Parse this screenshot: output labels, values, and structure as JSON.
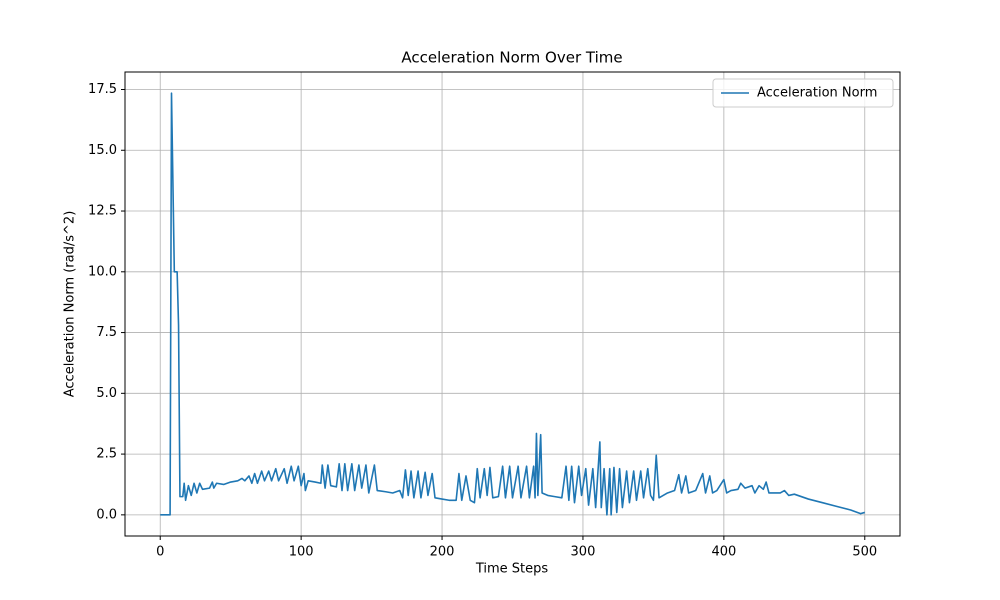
{
  "chart_data": {
    "type": "line",
    "title": "Acceleration Norm Over Time",
    "xlabel": "Time Steps",
    "ylabel": "Acceleration Norm (rad/s^2)",
    "x": [
      0,
      7,
      8,
      10,
      12,
      13,
      14,
      16,
      17,
      18,
      20,
      22,
      24,
      26,
      28,
      30,
      35,
      37,
      38,
      40,
      45,
      50,
      55,
      58,
      60,
      63,
      65,
      67,
      69,
      72,
      74,
      77,
      79,
      82,
      84,
      88,
      90,
      93,
      95,
      98,
      100,
      102,
      103,
      105,
      110,
      114,
      115,
      117,
      119,
      121,
      125,
      127,
      129,
      131,
      133,
      136,
      138,
      141,
      143,
      146,
      148,
      152,
      154,
      160,
      165,
      170,
      172,
      174,
      176,
      178,
      180,
      183,
      185,
      188,
      190,
      193,
      195,
      200,
      205,
      210,
      212,
      214,
      217,
      220,
      223,
      225,
      227,
      230,
      232,
      234,
      236,
      240,
      243,
      245,
      248,
      250,
      254,
      256,
      260,
      262,
      265,
      266,
      267,
      268,
      270,
      271,
      275,
      280,
      285,
      288,
      290,
      292,
      294,
      297,
      299,
      302,
      304,
      307,
      309,
      312,
      313,
      315,
      317,
      319,
      320,
      322,
      324,
      326,
      328,
      331,
      333,
      336,
      338,
      341,
      343,
      346,
      348,
      350,
      352,
      354,
      360,
      365,
      368,
      370,
      373,
      375,
      380,
      385,
      387,
      390,
      392,
      395,
      400,
      402,
      405,
      410,
      412,
      415,
      420,
      422,
      425,
      428,
      430,
      432,
      440,
      443,
      446,
      450,
      460,
      470,
      480,
      490,
      497,
      500
    ],
    "series": [
      {
        "name": "Acceleration Norm",
        "color": "#1f77b4",
        "values": [
          0,
          0,
          17.35,
          10,
          10,
          7.8,
          0.75,
          0.75,
          1.3,
          0.6,
          1.2,
          0.8,
          1.3,
          0.9,
          1.3,
          1.05,
          1.1,
          1.35,
          1.1,
          1.3,
          1.25,
          1.35,
          1.4,
          1.5,
          1.4,
          1.6,
          1.3,
          1.7,
          1.3,
          1.8,
          1.4,
          1.8,
          1.4,
          1.9,
          1.4,
          1.9,
          1.3,
          2.0,
          1.4,
          2.0,
          1.2,
          1.7,
          1.0,
          1.4,
          1.35,
          1.3,
          2.05,
          1.1,
          2.05,
          1.2,
          1.15,
          2.1,
          1.0,
          2.1,
          1.0,
          2.1,
          1.0,
          2.05,
          1.1,
          2.05,
          0.9,
          2.05,
          1.0,
          0.95,
          0.9,
          1.0,
          0.7,
          1.85,
          0.8,
          1.8,
          0.7,
          1.8,
          0.7,
          1.75,
          0.8,
          1.7,
          0.7,
          0.65,
          0.6,
          0.6,
          1.7,
          0.6,
          1.6,
          0.6,
          0.5,
          1.9,
          0.7,
          1.9,
          0.8,
          1.95,
          0.7,
          0.75,
          2.0,
          0.7,
          2.0,
          0.7,
          2.0,
          0.7,
          2.0,
          0.7,
          2.0,
          0.7,
          3.35,
          0.8,
          3.3,
          0.9,
          0.8,
          0.75,
          0.7,
          2.0,
          0.6,
          2.0,
          0.5,
          2.0,
          0.8,
          1.9,
          0.4,
          1.9,
          0.3,
          3.0,
          0.3,
          1.9,
          0.0,
          1.9,
          0.0,
          1.95,
          0.1,
          1.9,
          0.3,
          1.8,
          0.5,
          1.8,
          0.6,
          1.8,
          0.7,
          1.9,
          0.8,
          0.6,
          2.45,
          0.7,
          0.9,
          1.0,
          1.65,
          0.9,
          1.6,
          0.9,
          1.0,
          1.7,
          0.9,
          1.6,
          0.9,
          1.0,
          1.45,
          0.9,
          1.0,
          1.05,
          1.3,
          1.1,
          1.2,
          0.9,
          1.2,
          1.05,
          1.35,
          0.9,
          0.9,
          1.0,
          0.8,
          0.85,
          0.65,
          0.5,
          0.35,
          0.2,
          0.05,
          0.1
        ]
      }
    ],
    "xlim": [
      -25,
      525
    ],
    "xticks": [
      0,
      100,
      200,
      300,
      400,
      500
    ],
    "ylim": [
      -0.87,
      18.22
    ],
    "yticks": [
      {
        "value": 0,
        "label": "0.0"
      },
      2.5,
      {
        "value": 5,
        "label": "5.0"
      },
      7.5,
      {
        "value": 10,
        "label": "10.0"
      },
      12.5,
      {
        "value": 15,
        "label": "15.0"
      },
      17.5
    ],
    "grid": true,
    "legend": "upper right"
  }
}
